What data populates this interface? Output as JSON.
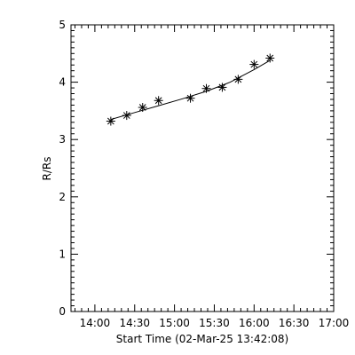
{
  "chart_data": {
    "type": "scatter",
    "xlabel": "Start Time (02-Mar-25 13:42:08)",
    "ylabel": "R/Rs",
    "xlim": [
      "13:42",
      "17:00"
    ],
    "ylim": [
      0,
      5
    ],
    "x_tick_labels": [
      "14:00",
      "14:30",
      "15:00",
      "15:30",
      "16:00",
      "16:30",
      "17:00"
    ],
    "y_tick_labels": [
      "0",
      "1",
      "2",
      "3",
      "4",
      "5"
    ],
    "grid": false,
    "marker": "asterisk",
    "series": [
      {
        "x": [
          "14:12",
          "14:24",
          "14:36",
          "14:48",
          "15:12",
          "15:24",
          "15:36",
          "15:48",
          "16:00",
          "16:12"
        ],
        "y": [
          3.32,
          3.42,
          3.56,
          3.68,
          3.72,
          3.89,
          3.91,
          4.05,
          4.31,
          4.42
        ]
      }
    ],
    "fit_line": {
      "x": [
        "14:12",
        "14:30",
        "14:48",
        "15:06",
        "15:24",
        "15:42",
        "16:00",
        "16:12"
      ],
      "y": [
        3.35,
        3.47,
        3.59,
        3.71,
        3.84,
        4.0,
        4.22,
        4.38
      ]
    }
  }
}
